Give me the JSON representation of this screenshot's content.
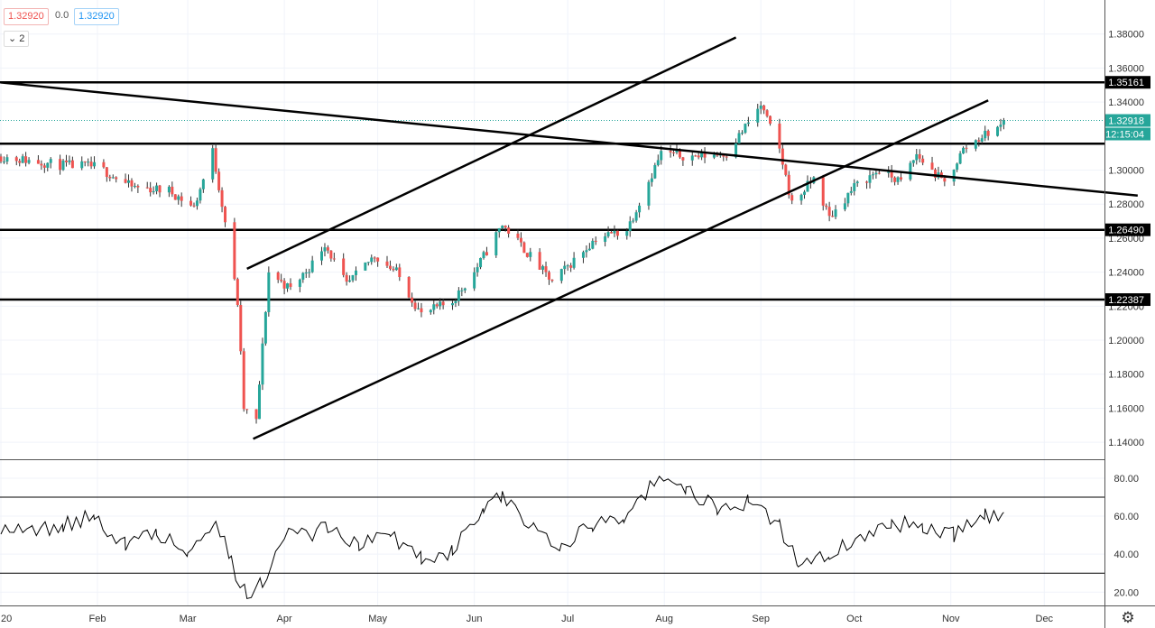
{
  "header": {
    "price_a": "1.32920",
    "change": "0.0",
    "price_b": "1.32920",
    "indicator_toggle": "2"
  },
  "icons": {
    "chevron": "chevron-down-icon",
    "settings": "gear-icon"
  },
  "colors": {
    "up": "#26a69a",
    "down": "#ef5350",
    "rsi": "#000000",
    "level_label_bg": "#000000",
    "price_label_bg": "#26a69a",
    "grid": "#f0f3fa"
  },
  "chart_data": [
    {
      "type": "candlestick",
      "title": "",
      "ylim": [
        1.13,
        1.4
      ],
      "y_ticks": [
        "1.38000",
        "1.36000",
        "1.34000",
        "1.30000",
        "1.28000",
        "1.26000",
        "1.24000",
        "1.22000",
        "1.20000",
        "1.18000",
        "1.16000",
        "1.14000"
      ],
      "x_ticks": [
        "20",
        "Feb",
        "Mar",
        "Apr",
        "May",
        "Jun",
        "Jul",
        "Aug",
        "Sep",
        "Oct",
        "Nov",
        "Dec"
      ],
      "last_price_label": "1.32918",
      "countdown_label": "12:15:04",
      "horizontal_levels": [
        {
          "value": 1.35161,
          "label": "1.35161"
        },
        {
          "value": 1.3155,
          "label": ""
        },
        {
          "value": 1.2649,
          "label": "1.26490"
        },
        {
          "value": 1.22387,
          "label": "1.22387"
        }
      ],
      "trend_lines": [
        {
          "from": [
            "2020-01-01",
            1.3515
          ],
          "to": [
            "2020-12-31",
            1.285
          ]
        },
        {
          "from": [
            "2020-03-20",
            1.242
          ],
          "to": [
            "2020-08-24",
            1.378
          ]
        },
        {
          "from": [
            "2020-03-22",
            1.142
          ],
          "to": [
            "2020-11-13",
            1.341
          ]
        }
      ],
      "ohlc_anchors": [
        [
          "2020-01-01",
          1.308
        ],
        [
          "2020-01-20",
          1.303
        ],
        [
          "2020-02-01",
          1.302
        ],
        [
          "2020-02-12",
          1.29
        ],
        [
          "2020-02-24",
          1.288
        ],
        [
          "2020-03-03",
          1.278
        ],
        [
          "2020-03-09",
          1.311
        ],
        [
          "2020-03-13",
          1.27
        ],
        [
          "2020-03-17",
          1.222
        ],
        [
          "2020-03-19",
          1.16
        ],
        [
          "2020-03-23",
          1.152
        ],
        [
          "2020-03-27",
          1.24
        ],
        [
          "2020-04-03",
          1.23
        ],
        [
          "2020-04-10",
          1.245
        ],
        [
          "2020-04-14",
          1.257
        ],
        [
          "2020-04-21",
          1.232
        ],
        [
          "2020-04-30",
          1.25
        ],
        [
          "2020-05-07",
          1.24
        ],
        [
          "2020-05-15",
          1.215
        ],
        [
          "2020-05-25",
          1.223
        ],
        [
          "2020-06-01",
          1.24
        ],
        [
          "2020-06-10",
          1.268
        ],
        [
          "2020-06-15",
          1.258
        ],
        [
          "2020-06-26",
          1.234
        ],
        [
          "2020-07-03",
          1.247
        ],
        [
          "2020-07-10",
          1.26
        ],
        [
          "2020-07-20",
          1.265
        ],
        [
          "2020-07-31",
          1.31
        ],
        [
          "2020-08-10",
          1.308
        ],
        [
          "2020-08-21",
          1.31
        ],
        [
          "2020-09-01",
          1.338
        ],
        [
          "2020-09-07",
          1.312
        ],
        [
          "2020-09-11",
          1.28
        ],
        [
          "2020-09-18",
          1.295
        ],
        [
          "2020-09-23",
          1.272
        ],
        [
          "2020-10-01",
          1.29
        ],
        [
          "2020-10-09",
          1.3
        ],
        [
          "2020-10-16",
          1.293
        ],
        [
          "2020-10-21",
          1.309
        ],
        [
          "2020-10-30",
          1.292
        ],
        [
          "2020-11-05",
          1.312
        ],
        [
          "2020-11-11",
          1.32
        ],
        [
          "2020-11-18",
          1.327
        ]
      ]
    },
    {
      "type": "line",
      "title": "",
      "ylim": [
        13,
        89
      ],
      "y_ticks": [
        "80.00",
        "60.00",
        "40.00",
        "20.00"
      ],
      "bands": [
        70,
        30
      ],
      "series": [
        {
          "name": "",
          "points": [
            [
              "2020-01-01",
              55
            ],
            [
              "2020-01-11",
              52
            ],
            [
              "2020-01-21",
              55
            ],
            [
              "2020-01-31",
              60
            ],
            [
              "2020-02-10",
              45
            ],
            [
              "2020-02-20",
              52
            ],
            [
              "2020-03-01",
              40
            ],
            [
              "2020-03-10",
              60
            ],
            [
              "2020-03-15",
              35
            ],
            [
              "2020-03-20",
              18
            ],
            [
              "2020-03-25",
              25
            ],
            [
              "2020-04-01",
              52
            ],
            [
              "2020-04-10",
              50
            ],
            [
              "2020-04-15",
              55
            ],
            [
              "2020-04-25",
              45
            ],
            [
              "2020-05-05",
              50
            ],
            [
              "2020-05-15",
              38
            ],
            [
              "2020-05-25",
              42
            ],
            [
              "2020-06-04",
              64
            ],
            [
              "2020-06-10",
              70
            ],
            [
              "2020-06-20",
              55
            ],
            [
              "2020-06-29",
              45
            ],
            [
              "2020-07-09",
              55
            ],
            [
              "2020-07-19",
              60
            ],
            [
              "2020-07-29",
              78
            ],
            [
              "2020-08-08",
              74
            ],
            [
              "2020-08-18",
              64
            ],
            [
              "2020-08-28",
              68
            ],
            [
              "2020-09-07",
              55
            ],
            [
              "2020-09-13",
              35
            ],
            [
              "2020-09-23",
              40
            ],
            [
              "2020-10-03",
              48
            ],
            [
              "2020-10-13",
              56
            ],
            [
              "2020-10-23",
              55
            ],
            [
              "2020-11-02",
              50
            ],
            [
              "2020-11-12",
              60
            ],
            [
              "2020-11-18",
              62
            ]
          ]
        }
      ]
    }
  ]
}
